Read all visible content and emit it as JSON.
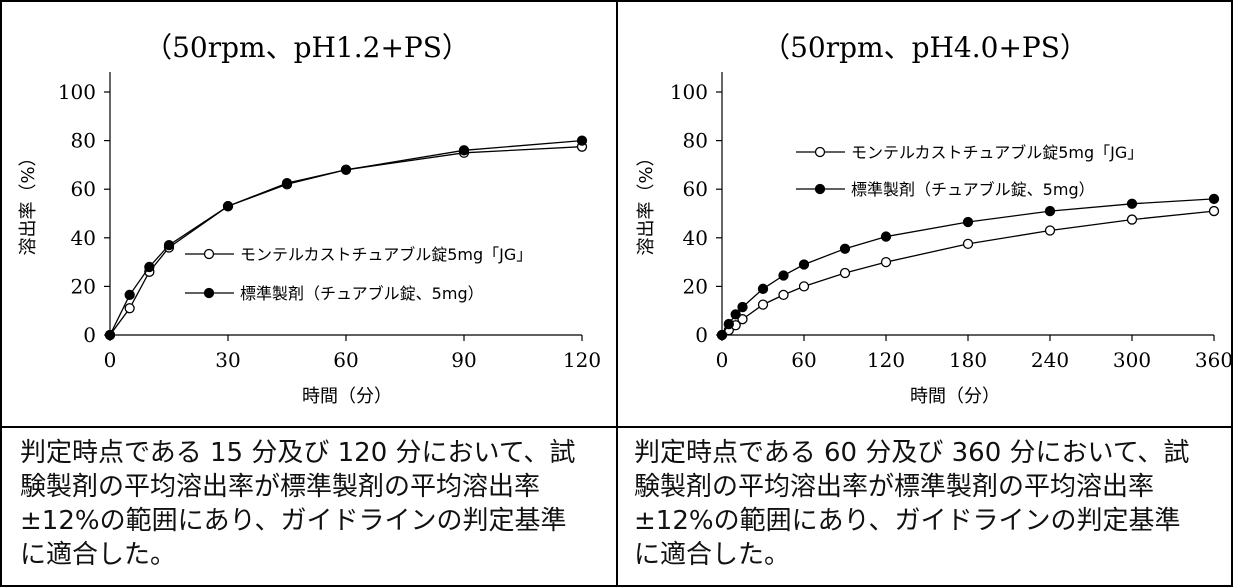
{
  "charts": [
    {
      "title": "（50rpm、pH1.2+PS）",
      "ylabel": "溶出率（%）",
      "xlabel": "時間（分）",
      "legend": {
        "test": "モンテルカストチュアブル錠5mg「JG」",
        "reference": "標準製剤（チュアブル錠、5mg）"
      }
    },
    {
      "title": "（50rpm、pH4.0+PS）",
      "ylabel": "溶出率（%）",
      "xlabel": "時間（分）",
      "legend": {
        "test": "モンテルカストチュアブル錠5mg「JG」",
        "reference": "標準製剤（チュアブル錠、5mg）"
      }
    }
  ],
  "judgements": [
    {
      "line1": "判定時点である 15 分及び 120 分において、試",
      "line2": "験製剤の平均溶出率が標準製剤の平均溶出率",
      "line3": "±12%の範囲にあり、ガイドラインの判定基準",
      "line4": "に適合した。"
    },
    {
      "line1": "判定時点である 60 分及び 360 分において、試",
      "line2": "験製剤の平均溶出率が標準製剤の平均溶出率",
      "line3": "±12%の範囲にあり、ガイドラインの判定基準",
      "line4": "に適合した。"
    }
  ],
  "chart_data": [
    {
      "type": "line",
      "title": "（50rpm、pH1.2+PS）",
      "xlabel": "時間（分）",
      "ylabel": "溶出率（%）",
      "xlim": [
        0,
        120
      ],
      "ylim": [
        0,
        100
      ],
      "xticks": [
        0,
        30,
        60,
        90,
        120
      ],
      "yticks": [
        0,
        20,
        40,
        60,
        80,
        100
      ],
      "legend_position": "center-right",
      "series": [
        {
          "name": "モンテルカストチュアブル錠5mg「JG」",
          "marker": "open-circle",
          "x": [
            0,
            5,
            10,
            15,
            30,
            45,
            60,
            90,
            120
          ],
          "y": [
            0,
            11,
            26,
            36,
            53,
            62,
            68,
            75,
            77.5
          ]
        },
        {
          "name": "標準製剤（チュアブル錠、5mg）",
          "marker": "filled-circle",
          "x": [
            0,
            5,
            10,
            15,
            30,
            45,
            60,
            90,
            120
          ],
          "y": [
            0,
            16.5,
            28,
            37,
            53,
            62.5,
            68,
            76,
            80
          ]
        }
      ]
    },
    {
      "type": "line",
      "title": "（50rpm、pH4.0+PS）",
      "xlabel": "時間（分）",
      "ylabel": "溶出率（%）",
      "xlim": [
        0,
        360
      ],
      "ylim": [
        0,
        100
      ],
      "xticks": [
        0,
        60,
        120,
        180,
        240,
        300,
        360
      ],
      "yticks": [
        0,
        20,
        40,
        60,
        80,
        100
      ],
      "legend_position": "top-center",
      "series": [
        {
          "name": "モンテルカストチュアブル錠5mg「JG」",
          "marker": "open-circle",
          "x": [
            0,
            5,
            10,
            15,
            30,
            45,
            60,
            90,
            120,
            180,
            240,
            300,
            360
          ],
          "y": [
            0,
            2,
            4,
            6.5,
            12.5,
            16.5,
            20,
            25.5,
            30,
            37.5,
            43,
            47.5,
            51
          ]
        },
        {
          "name": "標準製剤（チュアブル錠、5mg）",
          "marker": "filled-circle",
          "x": [
            0,
            5,
            10,
            15,
            30,
            45,
            60,
            90,
            120,
            180,
            240,
            300,
            360
          ],
          "y": [
            0,
            4.5,
            8.5,
            11.5,
            19,
            24.5,
            29,
            35.5,
            40.5,
            46.5,
            51,
            54,
            56
          ]
        }
      ]
    }
  ]
}
